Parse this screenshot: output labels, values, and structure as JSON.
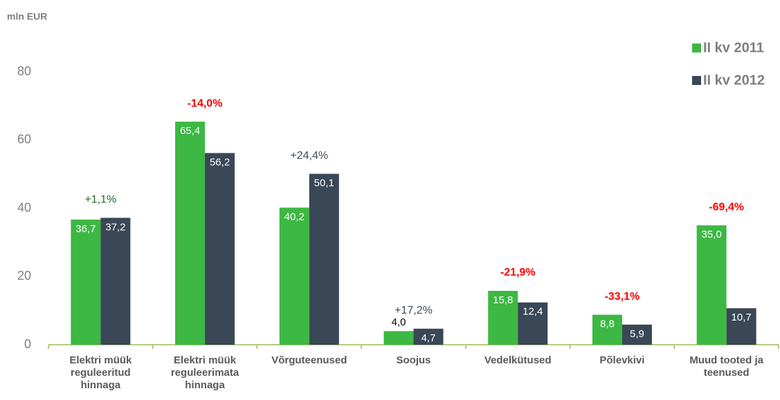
{
  "chart_data": {
    "type": "bar",
    "unit_label": "mln EUR",
    "categories": [
      "Elektri müük reguleeritud hinnaga",
      "Elektri müük reguleerimata hinnaga",
      "Võrguteenused",
      "Soojus",
      "Vedelkütused",
      "Põlevkivi",
      "Muud tooted ja teenused"
    ],
    "series": [
      {
        "name": "II kv 2011",
        "color": "#3db843",
        "values": [
          36.7,
          65.4,
          40.2,
          4.0,
          15.8,
          8.8,
          35.0
        ],
        "value_labels": [
          "36,7",
          "65,4",
          "40,2",
          "4,0",
          "15,8",
          "8,8",
          "35,0"
        ]
      },
      {
        "name": "II kv 2012",
        "color": "#3a4756",
        "values": [
          37.2,
          56.2,
          50.1,
          4.7,
          12.4,
          5.9,
          10.7
        ],
        "value_labels": [
          "37,2",
          "56,2",
          "50,1",
          "4,7",
          "12,4",
          "5,9",
          "10,7"
        ]
      }
    ],
    "changes": [
      "+1,1%",
      "-14,0%",
      "+24,4%",
      "+17,2%",
      "-21,9%",
      "-33,1%",
      "-69,4%"
    ],
    "change_colors": [
      "#1e6b2e",
      "#ff0000",
      "#404b59",
      "#404b59",
      "#ff0000",
      "#ff0000",
      "#ff0000"
    ],
    "change_bold": [
      false,
      true,
      false,
      false,
      true,
      true,
      true
    ],
    "ylim": [
      0,
      80
    ],
    "yticks": [
      0,
      20,
      40,
      60,
      80
    ],
    "grid": false,
    "legend": "top-right"
  }
}
